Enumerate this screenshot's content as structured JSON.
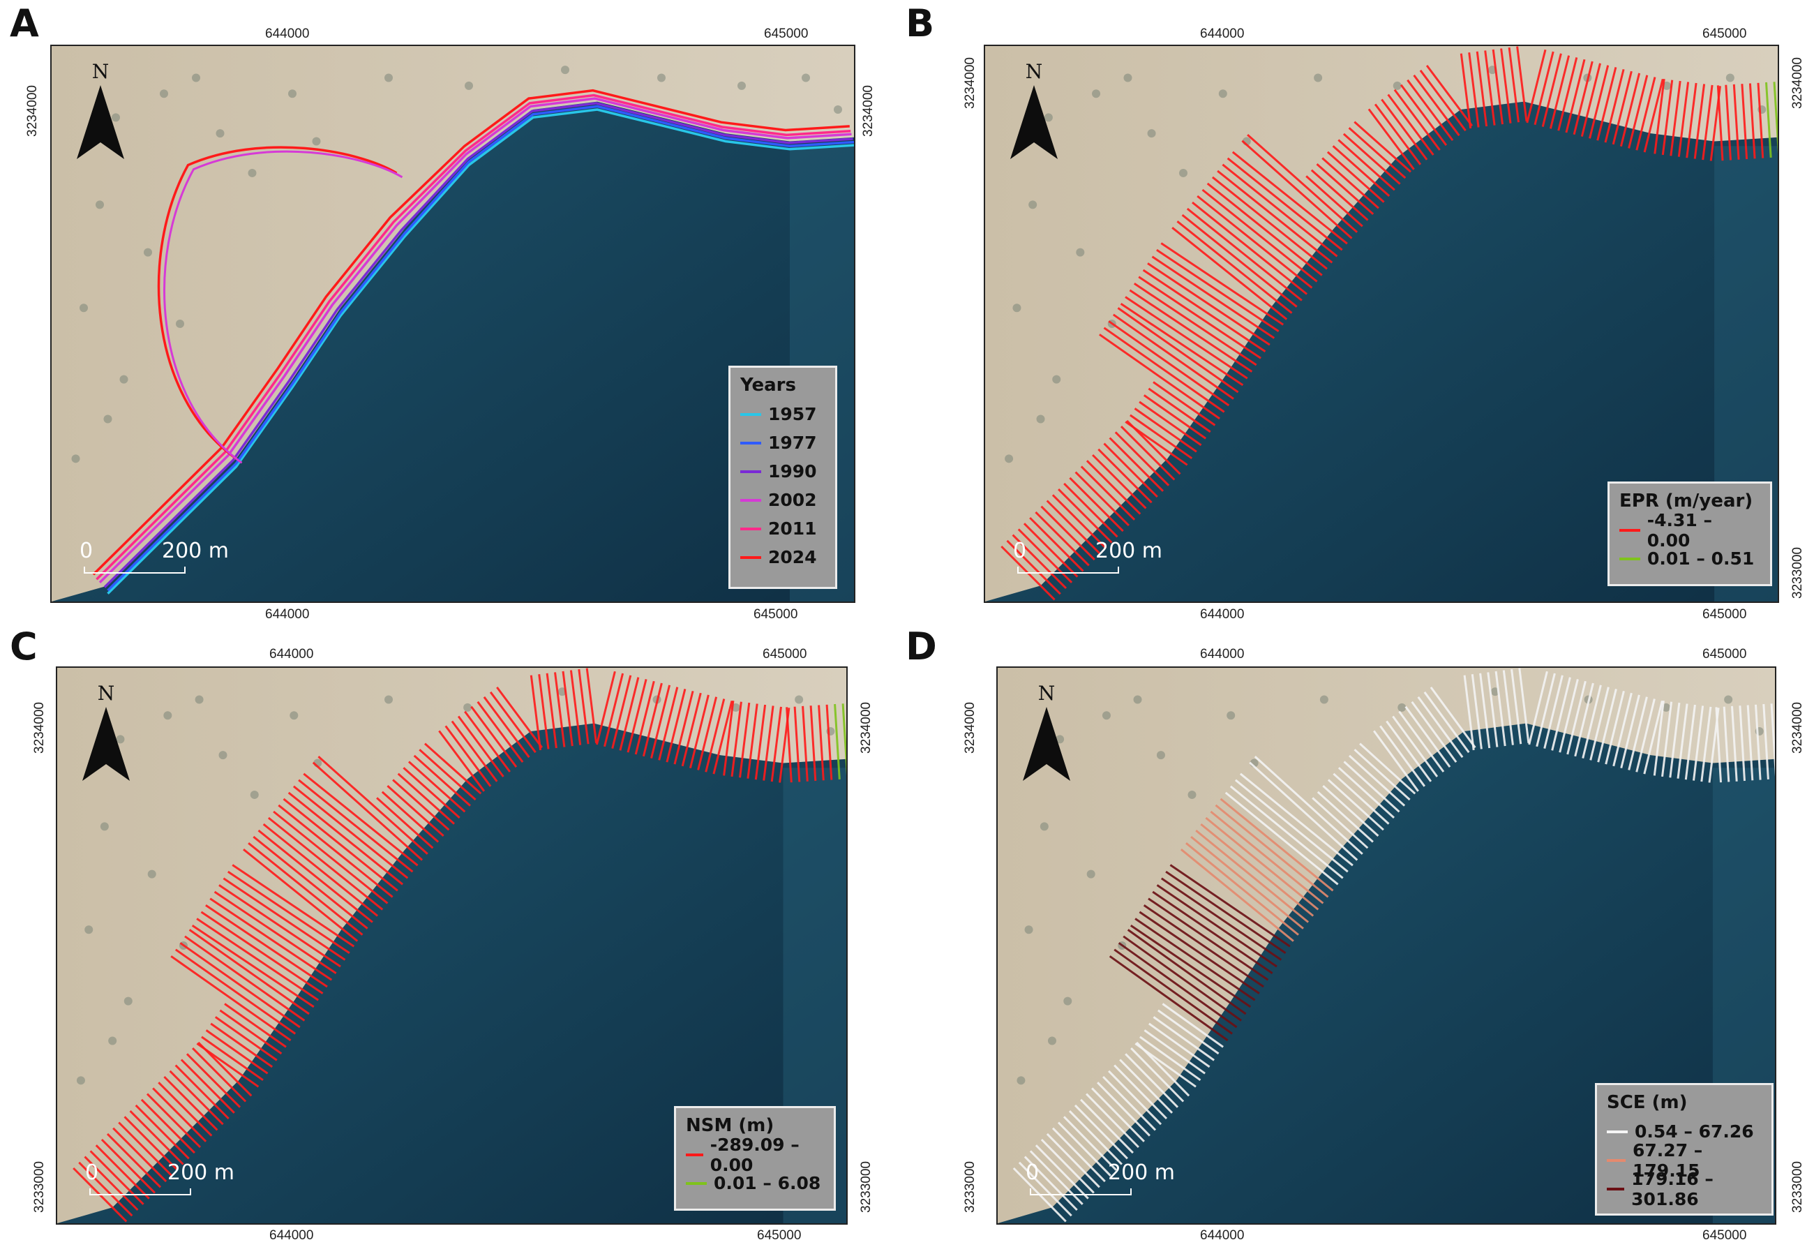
{
  "panels": [
    {
      "id": "A",
      "label": "A",
      "easting_ticks": [
        "644000",
        "645000"
      ],
      "northing_ticks": [
        "3234000"
      ],
      "north_label": "N",
      "scale": {
        "start": "0",
        "end": "200",
        "unit": "m"
      },
      "legend": {
        "title": "Years",
        "items": [
          {
            "label": "1957",
            "color": "#29c6e8"
          },
          {
            "label": "1977",
            "color": "#2f5bff"
          },
          {
            "label": "1990",
            "color": "#7a2ad6"
          },
          {
            "label": "2002",
            "color": "#d63ad6"
          },
          {
            "label": "2011",
            "color": "#ff2a8a"
          },
          {
            "label": "2024",
            "color": "#ff1a1a"
          }
        ]
      }
    },
    {
      "id": "B",
      "label": "B",
      "easting_ticks": [
        "644000",
        "645000"
      ],
      "northing_ticks": [
        "3234000",
        "3233000"
      ],
      "north_label": "N",
      "scale": {
        "start": "0",
        "end": "200",
        "unit": "m"
      },
      "legend": {
        "title": "EPR (m/year)",
        "items": [
          {
            "label": "-4.31 – 0.00",
            "color": "#ff1a1a"
          },
          {
            "label": "0.01 – 0.51",
            "color": "#7fc31c"
          }
        ]
      }
    },
    {
      "id": "C",
      "label": "C",
      "easting_ticks": [
        "644000",
        "645000"
      ],
      "northing_ticks": [
        "3234000",
        "3233000"
      ],
      "north_label": "N",
      "scale": {
        "start": "0",
        "end": "200",
        "unit": "m"
      },
      "legend": {
        "title": "NSM (m)",
        "items": [
          {
            "label": "-289.09 – 0.00",
            "color": "#ff1a1a"
          },
          {
            "label": "0.01 – 6.08",
            "color": "#7fc31c"
          }
        ]
      }
    },
    {
      "id": "D",
      "label": "D",
      "easting_ticks": [
        "644000",
        "645000"
      ],
      "northing_ticks": [
        "3234000",
        "3233000"
      ],
      "north_label": "N",
      "scale": {
        "start": "0",
        "end": "200",
        "unit": "m"
      },
      "legend": {
        "title": "SCE (m)",
        "items": [
          {
            "label": "0.54 – 67.26",
            "color": "#f4f4f4"
          },
          {
            "label": "67.27 – 179.15",
            "color": "#e58a6e"
          },
          {
            "label": "179.16 – 301.86",
            "color": "#6b0f14"
          }
        ]
      }
    }
  ]
}
